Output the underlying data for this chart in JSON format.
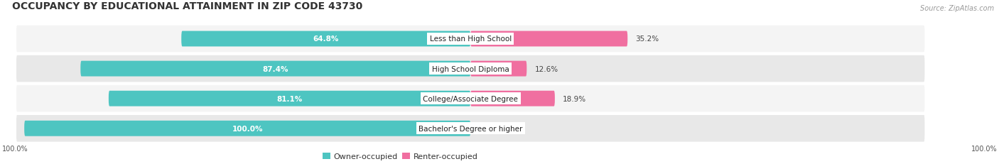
{
  "title": "OCCUPANCY BY EDUCATIONAL ATTAINMENT IN ZIP CODE 43730",
  "source": "Source: ZipAtlas.com",
  "categories": [
    "Less than High School",
    "High School Diploma",
    "College/Associate Degree",
    "Bachelor's Degree or higher"
  ],
  "owner_values": [
    64.8,
    87.4,
    81.1,
    100.0
  ],
  "renter_values": [
    35.2,
    12.6,
    18.9,
    0.0
  ],
  "owner_color": "#4EC5C1",
  "renter_color": "#F06FA0",
  "title_fontsize": 10,
  "bar_label_fontsize": 7.5,
  "cat_label_fontsize": 7.5,
  "legend_fontsize": 8,
  "axis_label_fontsize": 7,
  "max_value": 100.0,
  "left_axis_label": "100.0%",
  "right_axis_label": "100.0%",
  "background_color": "#FFFFFF",
  "strip_color_odd": "#F4F4F4",
  "strip_color_even": "#E8E8E8"
}
